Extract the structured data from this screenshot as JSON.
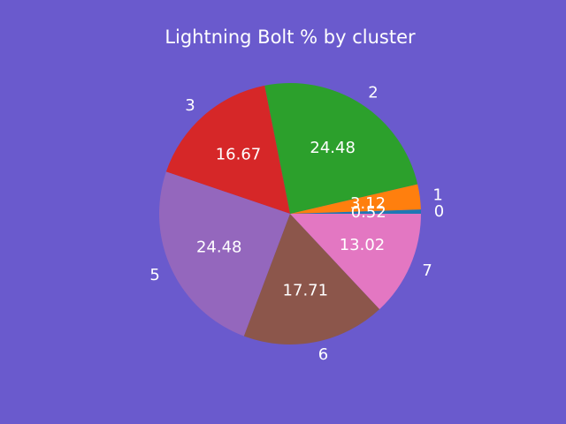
{
  "chart_data": {
    "type": "pie",
    "title": "Lightning Bolt % by cluster",
    "start_angle_deg": 0,
    "direction": "counterclockwise",
    "legend": "none",
    "slices": [
      {
        "label": "0",
        "value": 0.52,
        "display": "0.52",
        "color": "#1f77b4"
      },
      {
        "label": "1",
        "value": 3.12,
        "display": "3.12",
        "color": "#ff7f0e"
      },
      {
        "label": "2",
        "value": 24.48,
        "display": "24.48",
        "color": "#2ca02c"
      },
      {
        "label": "3",
        "value": 16.67,
        "display": "16.67",
        "color": "#d62728"
      },
      {
        "label": "5",
        "value": 24.48,
        "display": "24.48",
        "color": "#9467bd"
      },
      {
        "label": "6",
        "value": 17.71,
        "display": "17.71",
        "color": "#8c564b"
      },
      {
        "label": "7",
        "value": 13.02,
        "display": "13.02",
        "color": "#e377c2"
      }
    ]
  },
  "colors": {
    "background": "#6a5acd",
    "text": "#ffffff"
  }
}
